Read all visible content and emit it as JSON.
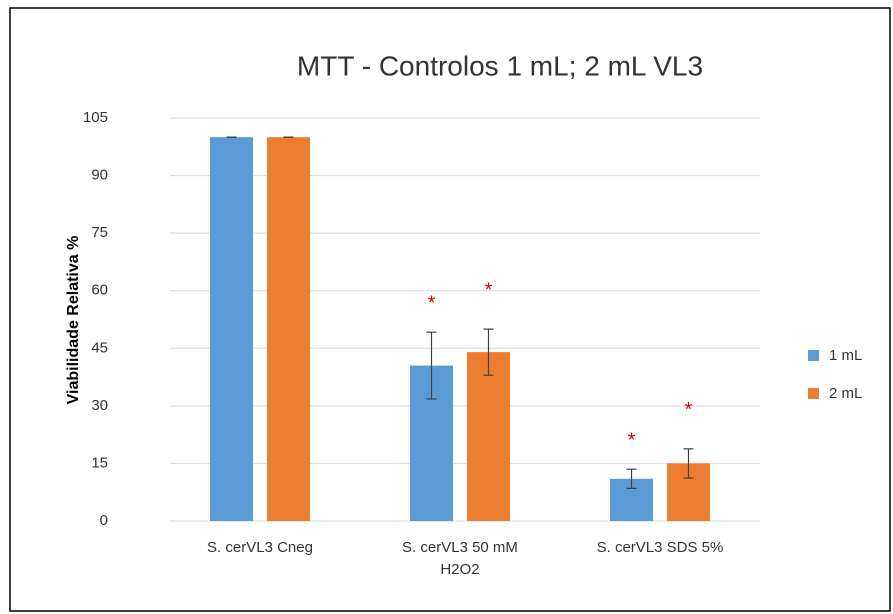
{
  "chart_data": {
    "type": "bar",
    "title": "MTT - Controlos 1 mL; 2 mL VL3",
    "ylabel": "Viabilidade Relativa %",
    "categories": [
      "S. cerVL3 Cneg",
      "S. cerVL3 50 mM\nH2O2",
      "S. cerVL3 SDS 5%"
    ],
    "series": [
      {
        "name": "1 mL",
        "color": "#5b9bd5",
        "values": [
          100,
          40.5,
          11
        ],
        "errors": [
          0,
          8.7,
          2.5
        ],
        "annotations": [
          null,
          "*",
          "*"
        ]
      },
      {
        "name": "2 mL",
        "color": "#ed7d31",
        "values": [
          100,
          44,
          15
        ],
        "errors": [
          0,
          6,
          3.8
        ],
        "annotations": [
          null,
          "*",
          "*"
        ]
      }
    ],
    "ylim": [
      0,
      105
    ],
    "yticks": [
      0,
      15,
      30,
      45,
      60,
      75,
      90,
      105
    ],
    "grid": true,
    "legend": "right"
  }
}
